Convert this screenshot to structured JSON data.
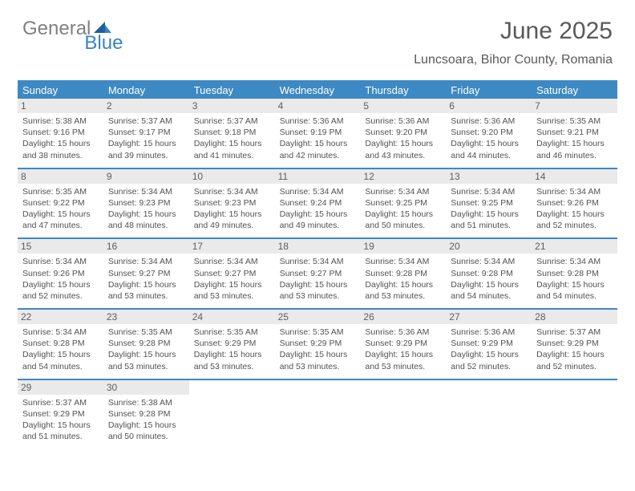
{
  "brand": {
    "firstWord": "General",
    "secondWord": "Blue"
  },
  "header": {
    "title": "June 2025",
    "location": "Luncsoara, Bihor County, Romania"
  },
  "colors": {
    "headerBar": "#3d89c3",
    "dayNumBg": "#eaeaea",
    "text": "#535353",
    "logoGray": "#808080",
    "logoBlue": "#3a84c4"
  },
  "dayNames": [
    "Sunday",
    "Monday",
    "Tuesday",
    "Wednesday",
    "Thursday",
    "Friday",
    "Saturday"
  ],
  "days": [
    {
      "n": 1,
      "sr": "5:38 AM",
      "ss": "9:16 PM",
      "dl": "15 hours and 38 minutes."
    },
    {
      "n": 2,
      "sr": "5:37 AM",
      "ss": "9:17 PM",
      "dl": "15 hours and 39 minutes."
    },
    {
      "n": 3,
      "sr": "5:37 AM",
      "ss": "9:18 PM",
      "dl": "15 hours and 41 minutes."
    },
    {
      "n": 4,
      "sr": "5:36 AM",
      "ss": "9:19 PM",
      "dl": "15 hours and 42 minutes."
    },
    {
      "n": 5,
      "sr": "5:36 AM",
      "ss": "9:20 PM",
      "dl": "15 hours and 43 minutes."
    },
    {
      "n": 6,
      "sr": "5:36 AM",
      "ss": "9:20 PM",
      "dl": "15 hours and 44 minutes."
    },
    {
      "n": 7,
      "sr": "5:35 AM",
      "ss": "9:21 PM",
      "dl": "15 hours and 46 minutes."
    },
    {
      "n": 8,
      "sr": "5:35 AM",
      "ss": "9:22 PM",
      "dl": "15 hours and 47 minutes."
    },
    {
      "n": 9,
      "sr": "5:34 AM",
      "ss": "9:23 PM",
      "dl": "15 hours and 48 minutes."
    },
    {
      "n": 10,
      "sr": "5:34 AM",
      "ss": "9:23 PM",
      "dl": "15 hours and 49 minutes."
    },
    {
      "n": 11,
      "sr": "5:34 AM",
      "ss": "9:24 PM",
      "dl": "15 hours and 49 minutes."
    },
    {
      "n": 12,
      "sr": "5:34 AM",
      "ss": "9:25 PM",
      "dl": "15 hours and 50 minutes."
    },
    {
      "n": 13,
      "sr": "5:34 AM",
      "ss": "9:25 PM",
      "dl": "15 hours and 51 minutes."
    },
    {
      "n": 14,
      "sr": "5:34 AM",
      "ss": "9:26 PM",
      "dl": "15 hours and 52 minutes."
    },
    {
      "n": 15,
      "sr": "5:34 AM",
      "ss": "9:26 PM",
      "dl": "15 hours and 52 minutes."
    },
    {
      "n": 16,
      "sr": "5:34 AM",
      "ss": "9:27 PM",
      "dl": "15 hours and 53 minutes."
    },
    {
      "n": 17,
      "sr": "5:34 AM",
      "ss": "9:27 PM",
      "dl": "15 hours and 53 minutes."
    },
    {
      "n": 18,
      "sr": "5:34 AM",
      "ss": "9:27 PM",
      "dl": "15 hours and 53 minutes."
    },
    {
      "n": 19,
      "sr": "5:34 AM",
      "ss": "9:28 PM",
      "dl": "15 hours and 53 minutes."
    },
    {
      "n": 20,
      "sr": "5:34 AM",
      "ss": "9:28 PM",
      "dl": "15 hours and 54 minutes."
    },
    {
      "n": 21,
      "sr": "5:34 AM",
      "ss": "9:28 PM",
      "dl": "15 hours and 54 minutes."
    },
    {
      "n": 22,
      "sr": "5:34 AM",
      "ss": "9:28 PM",
      "dl": "15 hours and 54 minutes."
    },
    {
      "n": 23,
      "sr": "5:35 AM",
      "ss": "9:28 PM",
      "dl": "15 hours and 53 minutes."
    },
    {
      "n": 24,
      "sr": "5:35 AM",
      "ss": "9:29 PM",
      "dl": "15 hours and 53 minutes."
    },
    {
      "n": 25,
      "sr": "5:35 AM",
      "ss": "9:29 PM",
      "dl": "15 hours and 53 minutes."
    },
    {
      "n": 26,
      "sr": "5:36 AM",
      "ss": "9:29 PM",
      "dl": "15 hours and 53 minutes."
    },
    {
      "n": 27,
      "sr": "5:36 AM",
      "ss": "9:29 PM",
      "dl": "15 hours and 52 minutes."
    },
    {
      "n": 28,
      "sr": "5:37 AM",
      "ss": "9:29 PM",
      "dl": "15 hours and 52 minutes."
    },
    {
      "n": 29,
      "sr": "5:37 AM",
      "ss": "9:29 PM",
      "dl": "15 hours and 51 minutes."
    },
    {
      "n": 30,
      "sr": "5:38 AM",
      "ss": "9:28 PM",
      "dl": "15 hours and 50 minutes."
    }
  ],
  "labels": {
    "sunrise": "Sunrise:",
    "sunset": "Sunset:",
    "daylight": "Daylight:"
  },
  "layout": {
    "firstDayOffset": 0,
    "totalCells": 35
  }
}
